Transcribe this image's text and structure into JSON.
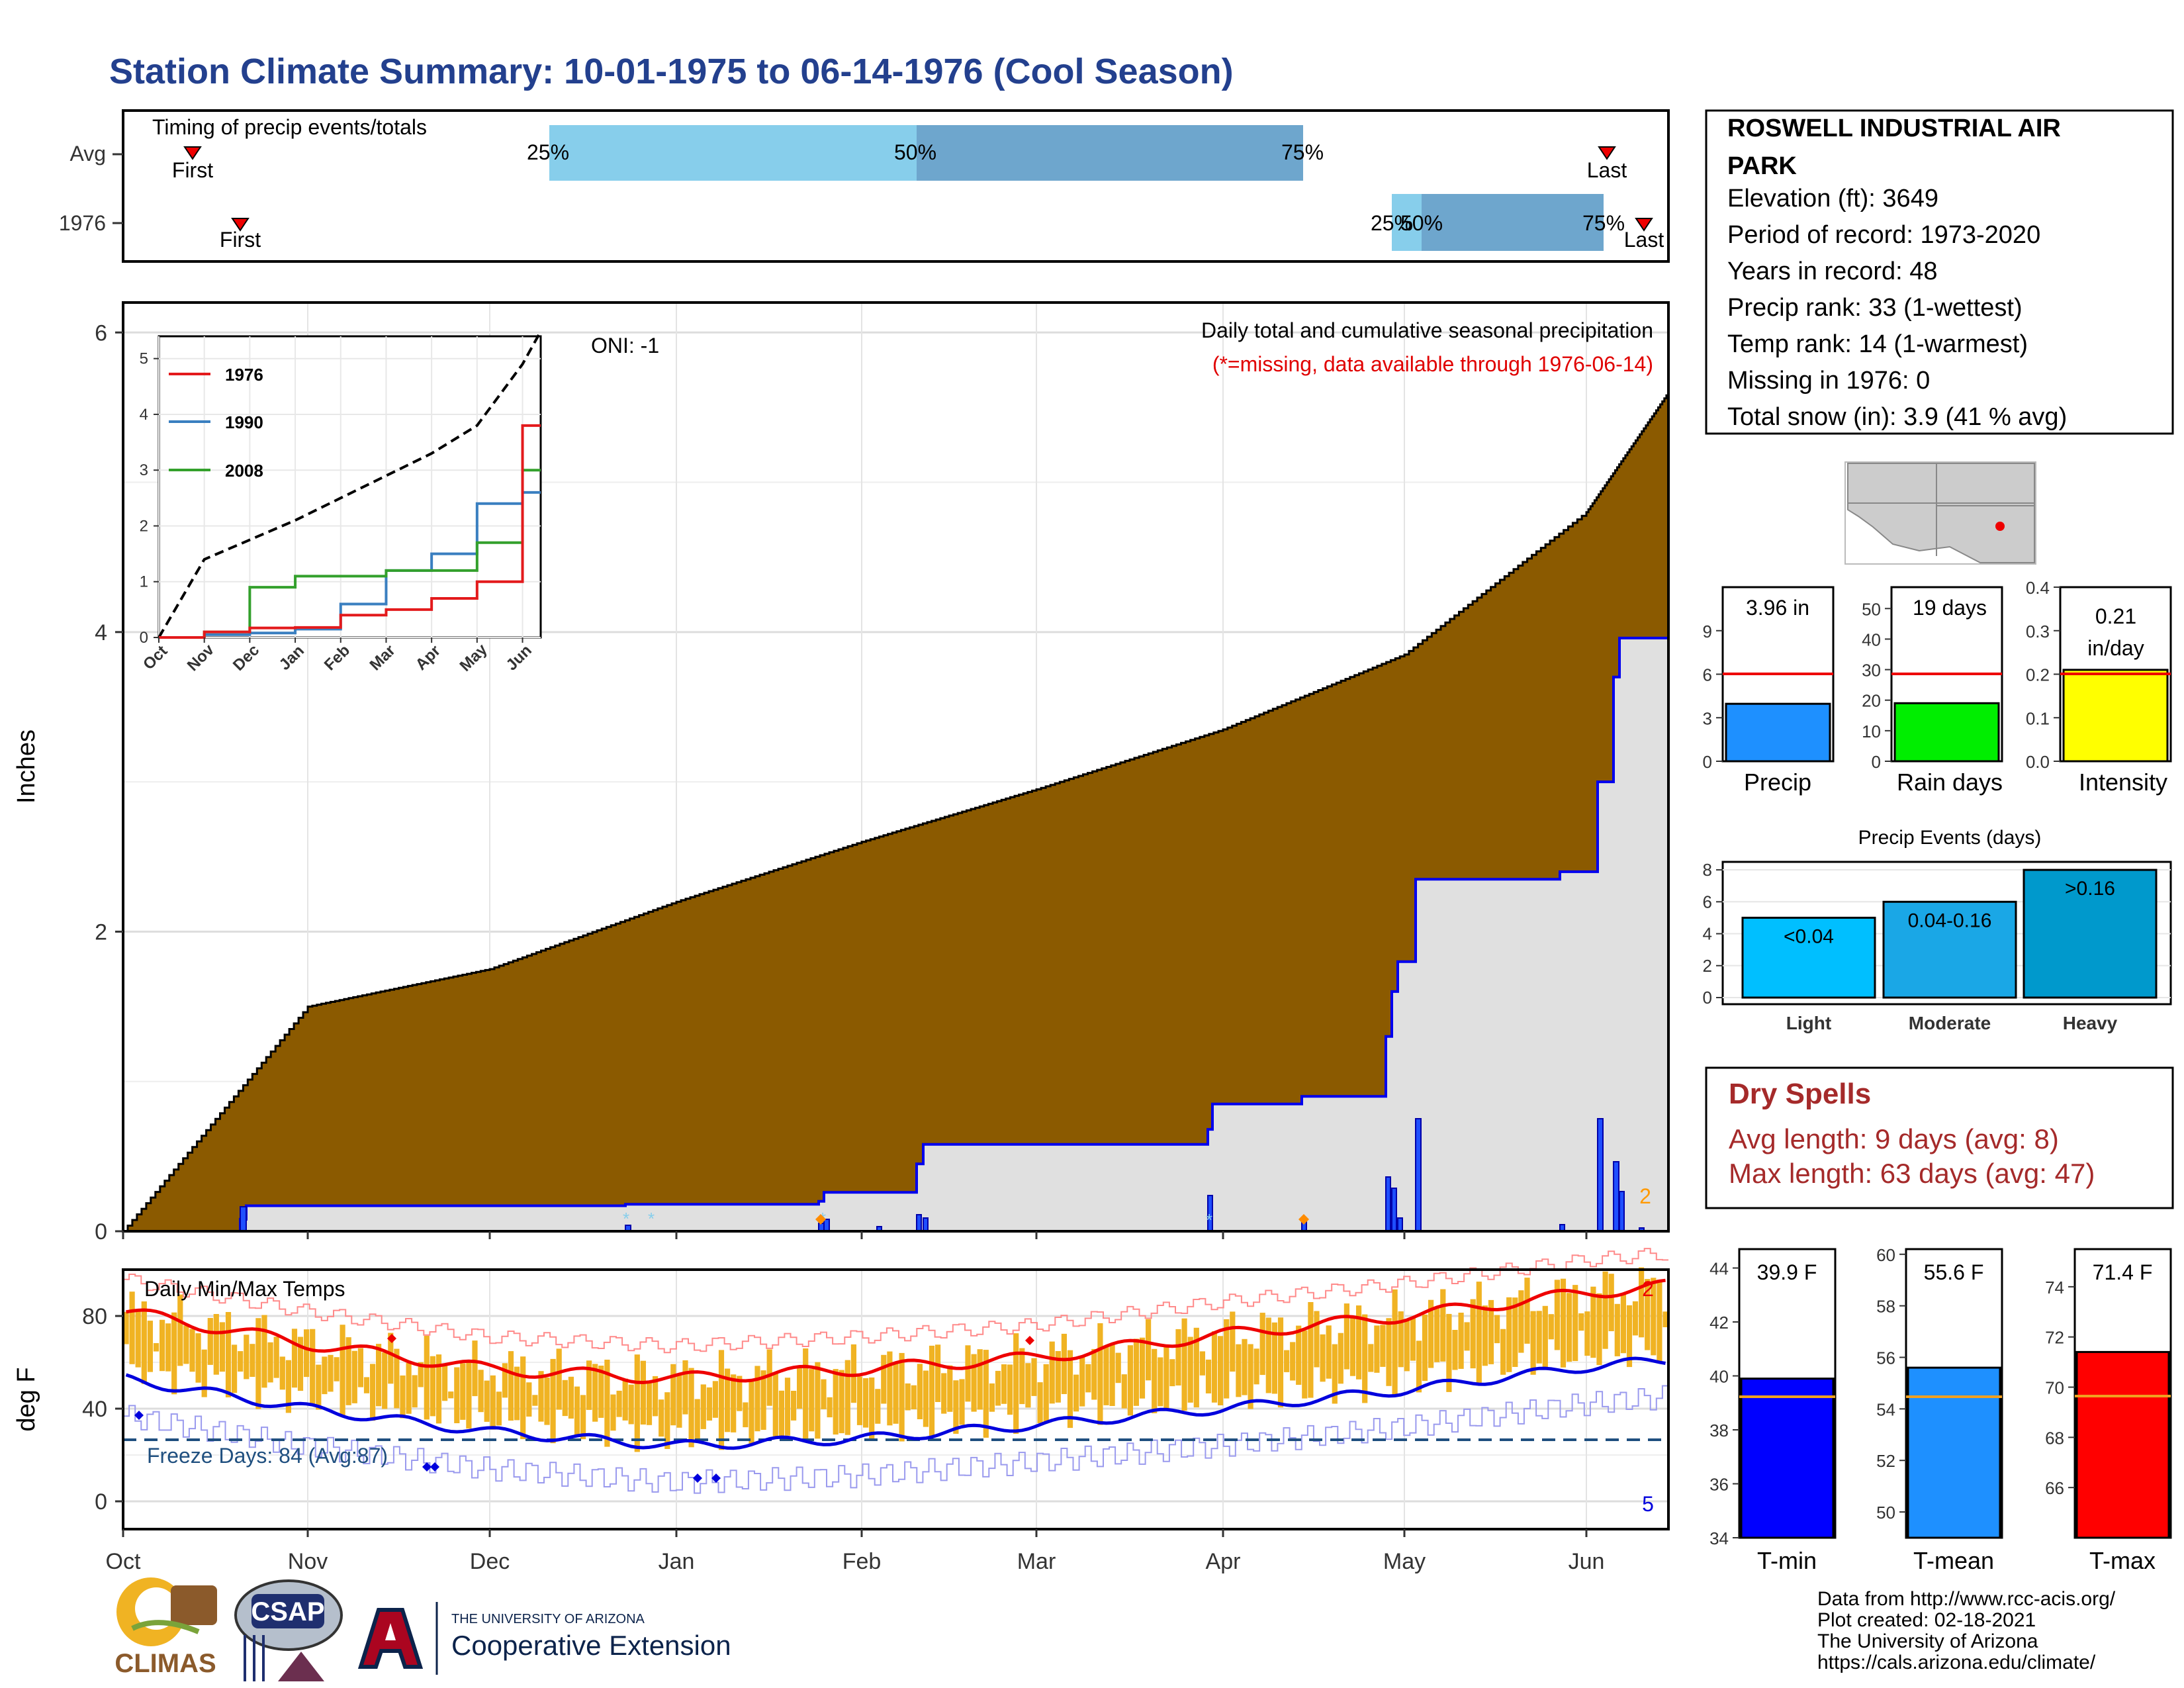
{
  "title": "Station Climate Summary: 10-01-1975 to 06-14-1976 (Cool Season)",
  "colors": {
    "title": "#23408e",
    "precip_fill": "#8b5a00",
    "avg_fill": "#e0e0e0",
    "line_1976": "#e31a1c",
    "line_1990": "#3a7fc0",
    "line_2008": "#33a02c",
    "bar_light": "#87ceeb",
    "bar_dark": "#6ea6cd",
    "temp_bar": "#f0b323",
    "tmax_line": "#ee0000",
    "tmin_line": "#0000dd",
    "dry_spell_text": "#a52a2a"
  },
  "timing": {
    "label": "Timing of precip events/totals",
    "rows": [
      "Avg",
      "1976"
    ],
    "avg": {
      "first_label": "First",
      "last_label": "Last",
      "p25": "25%",
      "p50": "50%",
      "p75": "75%"
    },
    "y1976": {
      "first_label": "First",
      "last_label": "Last",
      "p25": "25%",
      "p50": "50%",
      "p75": "75%"
    }
  },
  "station": {
    "name": "ROSWELL INDUSTRIAL AIR PARK",
    "lines": [
      "Elevation (ft): 3649",
      "Period of record: 1973-2020",
      "Years in record: 48",
      "Precip rank: 33 (1-wettest)",
      "Temp rank: 14 (1-warmest)",
      "Missing in 1976: 0",
      "Total snow (in): 3.9 (41 % avg)"
    ]
  },
  "main": {
    "ylabel": "Inches",
    "oni": "ONI: -1",
    "subtitle": "Daily total and cumulative seasonal precipitation",
    "missing_note": "(*=missing, data available through 1976-06-14)",
    "corner_count": "2",
    "yticks": [
      "0",
      "2",
      "4",
      "6"
    ],
    "months": [
      "Oct",
      "Nov",
      "Dec",
      "Jan",
      "Feb",
      "Mar",
      "Apr",
      "May",
      "Jun"
    ]
  },
  "inset": {
    "legend": [
      "1976",
      "1990",
      "2008"
    ],
    "yticks": [
      "0",
      "1",
      "2",
      "3",
      "4",
      "5"
    ],
    "months": [
      "Oct",
      "Nov",
      "Dec",
      "Jan",
      "Feb",
      "Mar",
      "Apr",
      "May",
      "Jun"
    ]
  },
  "temps": {
    "label": "Daily Min/Max Temps",
    "ylabel": "deg F",
    "freeze": "Freeze Days: 84 (Avg:87)",
    "count_max": "2",
    "count_min": "5",
    "yticks": [
      "0",
      "40",
      "80"
    ]
  },
  "precip_stats": {
    "precip": {
      "value": "3.96 in",
      "label": "Precip",
      "yticks": [
        "0",
        "3",
        "6",
        "9"
      ]
    },
    "raindays": {
      "value": "19 days",
      "label": "Rain days",
      "yticks": [
        "0",
        "10",
        "20",
        "30",
        "40",
        "50"
      ]
    },
    "intensity": {
      "value1": "0.21",
      "value2": "in/day",
      "label": "Intensity",
      "yticks": [
        "0.0",
        "0.1",
        "0.2",
        "0.3",
        "0.4"
      ]
    }
  },
  "events": {
    "title": "Precip Events (days)",
    "labels": [
      "Light",
      "Moderate",
      "Heavy"
    ],
    "bins": [
      "<0.04",
      "0.04-0.16",
      ">0.16"
    ],
    "yticks": [
      "0",
      "2",
      "4",
      "6",
      "8"
    ]
  },
  "dry": {
    "title": "Dry Spells",
    "avg": "Avg length: 9 days (avg: 8)",
    "max": "Max length: 63 days (avg: 47)"
  },
  "temp_stats": {
    "tmin": {
      "value": "39.9 F",
      "label": "T-min",
      "yticks": [
        "34",
        "36",
        "38",
        "40",
        "42",
        "44"
      ]
    },
    "tmean": {
      "value": "55.6 F",
      "label": "T-mean",
      "yticks": [
        "50",
        "52",
        "54",
        "56",
        "58",
        "60"
      ]
    },
    "tmax": {
      "value": "71.4 F",
      "label": "T-max",
      "yticks": [
        "66",
        "68",
        "70",
        "72",
        "74"
      ]
    }
  },
  "footer": {
    "lines": [
      "Data from http://www.rcc-acis.org/",
      "Plot created: 02-18-2021",
      "The University of Arizona",
      "https://cals.arizona.edu/climate/"
    ],
    "climas": "CLIMAS",
    "csap": "CSAP",
    "ua_small": "THE UNIVERSITY OF ARIZONA",
    "ua_big": "Cooperative Extension"
  },
  "chart_data": [
    {
      "type": "area",
      "name": "cumulative_precip_main",
      "x": [
        "Oct",
        "Nov",
        "Dec",
        "Jan",
        "Feb",
        "Mar",
        "Apr",
        "May",
        "Jun",
        "Jun 14"
      ],
      "series": [
        {
          "name": "Avg cumulative",
          "values": [
            0.0,
            1.5,
            1.75,
            2.2,
            2.6,
            2.95,
            3.35,
            3.85,
            4.8,
            5.6
          ]
        },
        {
          "name": "1976 cumulative",
          "values": [
            0.0,
            0.17,
            0.17,
            0.17,
            0.2,
            0.58,
            0.85,
            0.95,
            2.35,
            3.96
          ]
        }
      ],
      "ylim": [
        0,
        6.2
      ]
    },
    {
      "type": "line",
      "name": "cumulative_inset",
      "x": [
        "Oct",
        "Nov",
        "Dec",
        "Jan",
        "Feb",
        "Mar",
        "Apr",
        "May",
        "Jun"
      ],
      "series": [
        {
          "name": "Avg",
          "values": [
            0.0,
            1.4,
            1.75,
            2.1,
            2.5,
            2.9,
            3.3,
            3.8,
            4.9
          ]
        },
        {
          "name": "1976",
          "values": [
            0.0,
            0.1,
            0.17,
            0.18,
            0.4,
            0.5,
            0.7,
            1.0,
            3.8
          ]
        },
        {
          "name": "1990",
          "values": [
            0.0,
            0.05,
            0.08,
            0.15,
            0.6,
            1.2,
            1.5,
            2.4,
            2.6
          ]
        },
        {
          "name": "2008",
          "values": [
            0.0,
            0.1,
            0.9,
            1.1,
            1.1,
            1.2,
            1.2,
            1.7,
            3.0
          ]
        }
      ],
      "ylim": [
        0,
        5.4
      ]
    },
    {
      "type": "line",
      "name": "daily_temps_smoothed",
      "x": [
        "Oct",
        "Nov",
        "Dec",
        "Jan",
        "Feb",
        "Mar",
        "Apr",
        "May",
        "Jun",
        "Jun 14"
      ],
      "series": [
        {
          "name": "Avg max",
          "values": [
            82,
            68,
            57,
            53,
            57,
            62,
            72,
            80,
            90,
            93
          ]
        },
        {
          "name": "Avg min",
          "values": [
            53,
            40,
            30,
            24,
            27,
            33,
            40,
            48,
            58,
            61
          ]
        }
      ],
      "ylim": [
        -12,
        100
      ]
    },
    {
      "type": "bar",
      "name": "precip_events",
      "categories": [
        "Light",
        "Moderate",
        "Heavy"
      ],
      "values": [
        5,
        6,
        8
      ],
      "ylim": [
        0,
        8.5
      ]
    },
    {
      "type": "bar",
      "name": "season_totals",
      "categories": [
        "Precip",
        "Rain days",
        "Intensity",
        "T-min",
        "T-mean",
        "T-max"
      ],
      "values": [
        3.96,
        19,
        0.21,
        39.9,
        55.6,
        71.4
      ]
    }
  ]
}
